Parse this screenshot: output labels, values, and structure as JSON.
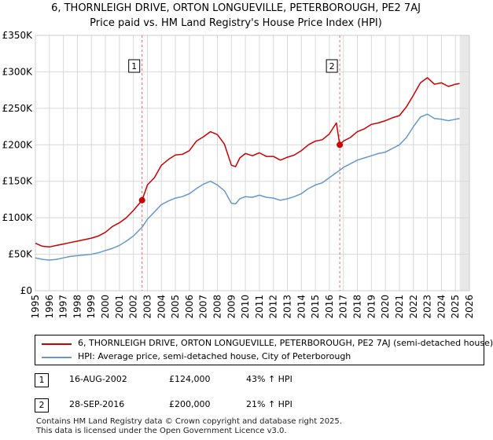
{
  "title_line1": "6, THORNLEIGH DRIVE, ORTON LONGUEVILLE, PETERBOROUGH, PE2 7AJ",
  "title_line2": "Price paid vs. HM Land Registry's House Price Index (HPI)",
  "colors": {
    "property": "#cc0000",
    "hpi": "#6699cc",
    "grid": "#d8d8d8",
    "marker_line": "#ee6666",
    "future_shade": "#e8e8e8"
  },
  "chart_data": {
    "type": "line",
    "title": "6, THORNLEIGH DRIVE, ORTON LONGUEVILLE, PETERBOROUGH, PE2 7AJ",
    "subtitle": "Price paid vs. HM Land Registry's House Price Index (HPI)",
    "xlim": [
      1995,
      2026
    ],
    "ylim": [
      0,
      350000
    ],
    "y_ticks": [
      {
        "value": 0,
        "label": "£0"
      },
      {
        "value": 50000,
        "label": "£50K"
      },
      {
        "value": 100000,
        "label": "£100K"
      },
      {
        "value": 150000,
        "label": "£150K"
      },
      {
        "value": 200000,
        "label": "£200K"
      },
      {
        "value": 250000,
        "label": "£250K"
      },
      {
        "value": 300000,
        "label": "£300K"
      },
      {
        "value": 350000,
        "label": "£350K"
      }
    ],
    "x_ticks": [
      "1995",
      "1996",
      "1997",
      "1998",
      "1999",
      "2000",
      "2001",
      "2002",
      "2003",
      "2004",
      "2005",
      "2006",
      "2007",
      "2008",
      "2009",
      "2010",
      "2011",
      "2012",
      "2013",
      "2014",
      "2015",
      "2016",
      "2017",
      "2018",
      "2019",
      "2020",
      "2021",
      "2022",
      "2023",
      "2024",
      "2025",
      "2026"
    ],
    "grid": true,
    "future_shade_from": 2025.3,
    "series": [
      {
        "name": "6, THORNLEIGH DRIVE, ORTON LONGUEVILLE, PETERBOROUGH, PE2 7AJ (semi-detached house)",
        "key": "property",
        "x": [
          1995.0,
          1995.5,
          1996.0,
          1996.5,
          1997.0,
          1997.5,
          1998.0,
          1998.5,
          1999.0,
          1999.5,
          2000.0,
          2000.5,
          2001.0,
          2001.5,
          2002.0,
          2002.62,
          2003.0,
          2003.5,
          2004.0,
          2004.5,
          2005.0,
          2005.5,
          2006.0,
          2006.5,
          2007.0,
          2007.5,
          2008.0,
          2008.5,
          2009.0,
          2009.3,
          2009.6,
          2010.0,
          2010.5,
          2011.0,
          2011.5,
          2012.0,
          2012.5,
          2013.0,
          2013.5,
          2014.0,
          2014.5,
          2015.0,
          2015.5,
          2016.0,
          2016.5,
          2016.74,
          2017.0,
          2017.5,
          2018.0,
          2018.5,
          2019.0,
          2019.5,
          2020.0,
          2020.5,
          2021.0,
          2021.5,
          2022.0,
          2022.5,
          2023.0,
          2023.5,
          2024.0,
          2024.5,
          2025.0,
          2025.3
        ],
        "y": [
          65000,
          61000,
          60000,
          62000,
          64000,
          66000,
          68000,
          70000,
          72000,
          75000,
          80000,
          88000,
          93000,
          100000,
          110000,
          124000,
          145000,
          155000,
          172000,
          180000,
          186000,
          187000,
          192000,
          205000,
          211000,
          218000,
          214000,
          201000,
          172000,
          170000,
          182000,
          188000,
          185000,
          189000,
          184000,
          184000,
          179000,
          183000,
          186000,
          192000,
          200000,
          205000,
          207000,
          215000,
          230000,
          200000,
          205000,
          210000,
          218000,
          222000,
          228000,
          230000,
          233000,
          237000,
          240000,
          252000,
          268000,
          285000,
          292000,
          283000,
          285000,
          280000,
          283000,
          284000
        ]
      },
      {
        "name": "HPI: Average price, semi-detached house, City of Peterborough",
        "key": "hpi",
        "x": [
          1995.0,
          1995.5,
          1996.0,
          1996.5,
          1997.0,
          1997.5,
          1998.0,
          1998.5,
          1999.0,
          1999.5,
          2000.0,
          2000.5,
          2001.0,
          2001.5,
          2002.0,
          2002.62,
          2003.0,
          2003.5,
          2004.0,
          2004.5,
          2005.0,
          2005.5,
          2006.0,
          2006.5,
          2007.0,
          2007.5,
          2008.0,
          2008.5,
          2009.0,
          2009.3,
          2009.6,
          2010.0,
          2010.5,
          2011.0,
          2011.5,
          2012.0,
          2012.5,
          2013.0,
          2013.5,
          2014.0,
          2014.5,
          2015.0,
          2015.5,
          2016.0,
          2016.5,
          2016.74,
          2017.0,
          2017.5,
          2018.0,
          2018.5,
          2019.0,
          2019.5,
          2020.0,
          2020.5,
          2021.0,
          2021.5,
          2022.0,
          2022.5,
          2023.0,
          2023.5,
          2024.0,
          2024.5,
          2025.0,
          2025.3
        ],
        "y": [
          45000,
          43000,
          42000,
          43000,
          45000,
          47000,
          48000,
          49000,
          50000,
          52000,
          55000,
          58000,
          62000,
          68000,
          75000,
          87000,
          98000,
          108000,
          118000,
          123000,
          127000,
          129000,
          133000,
          140000,
          146000,
          150000,
          145000,
          137000,
          120000,
          119000,
          126000,
          129000,
          128000,
          131000,
          128000,
          127000,
          124000,
          126000,
          129000,
          133000,
          140000,
          145000,
          148000,
          155000,
          162000,
          165000,
          169000,
          174000,
          179000,
          182000,
          185000,
          188000,
          190000,
          195000,
          200000,
          210000,
          225000,
          238000,
          242000,
          236000,
          235000,
          233000,
          235000,
          236000
        ]
      }
    ],
    "annotations": [
      {
        "label": "1",
        "x": 2002.62,
        "y": 124000
      },
      {
        "label": "2",
        "x": 2016.74,
        "y": 200000
      }
    ]
  },
  "legend": {
    "property_label": "6, THORNLEIGH DRIVE, ORTON LONGUEVILLE, PETERBOROUGH, PE2 7AJ (semi-detached house)",
    "hpi_label": "HPI: Average price, semi-detached house, City of Peterborough"
  },
  "transactions": [
    {
      "badge": "1",
      "date": "16-AUG-2002",
      "price": "£124,000",
      "hpi": "43% ↑ HPI"
    },
    {
      "badge": "2",
      "date": "28-SEP-2016",
      "price": "£200,000",
      "hpi": "21% ↑ HPI"
    }
  ],
  "footer": {
    "line1": "Contains HM Land Registry data © Crown copyright and database right 2025.",
    "line2": "This data is licensed under the Open Government Licence v3.0."
  }
}
